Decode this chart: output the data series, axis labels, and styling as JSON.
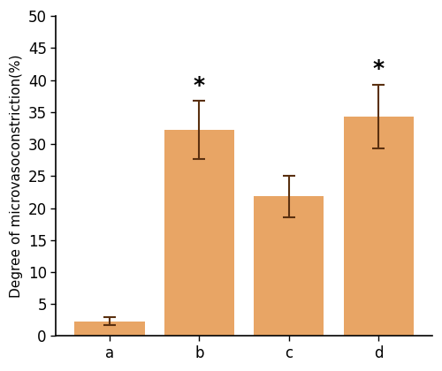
{
  "categories": [
    "a",
    "b",
    "c",
    "d"
  ],
  "values": [
    2.3,
    32.2,
    21.8,
    34.3
  ],
  "errors": [
    0.6,
    4.5,
    3.2,
    5.0
  ],
  "bar_color": "#E8A565",
  "asterisk_bars": [
    1,
    3
  ],
  "ylabel": "Degree of microvasoconstriction(%)",
  "ylim": [
    0,
    50
  ],
  "yticks": [
    0,
    5,
    10,
    15,
    20,
    25,
    30,
    35,
    40,
    45,
    50
  ],
  "label_fontsize": 11,
  "tick_fontsize": 12,
  "asterisk_fontsize": 18,
  "bar_width": 0.78,
  "background_color": "#ffffff",
  "ecolor": "#5a3010",
  "elinewidth": 1.5,
  "capsize": 5,
  "capthick": 1.5
}
